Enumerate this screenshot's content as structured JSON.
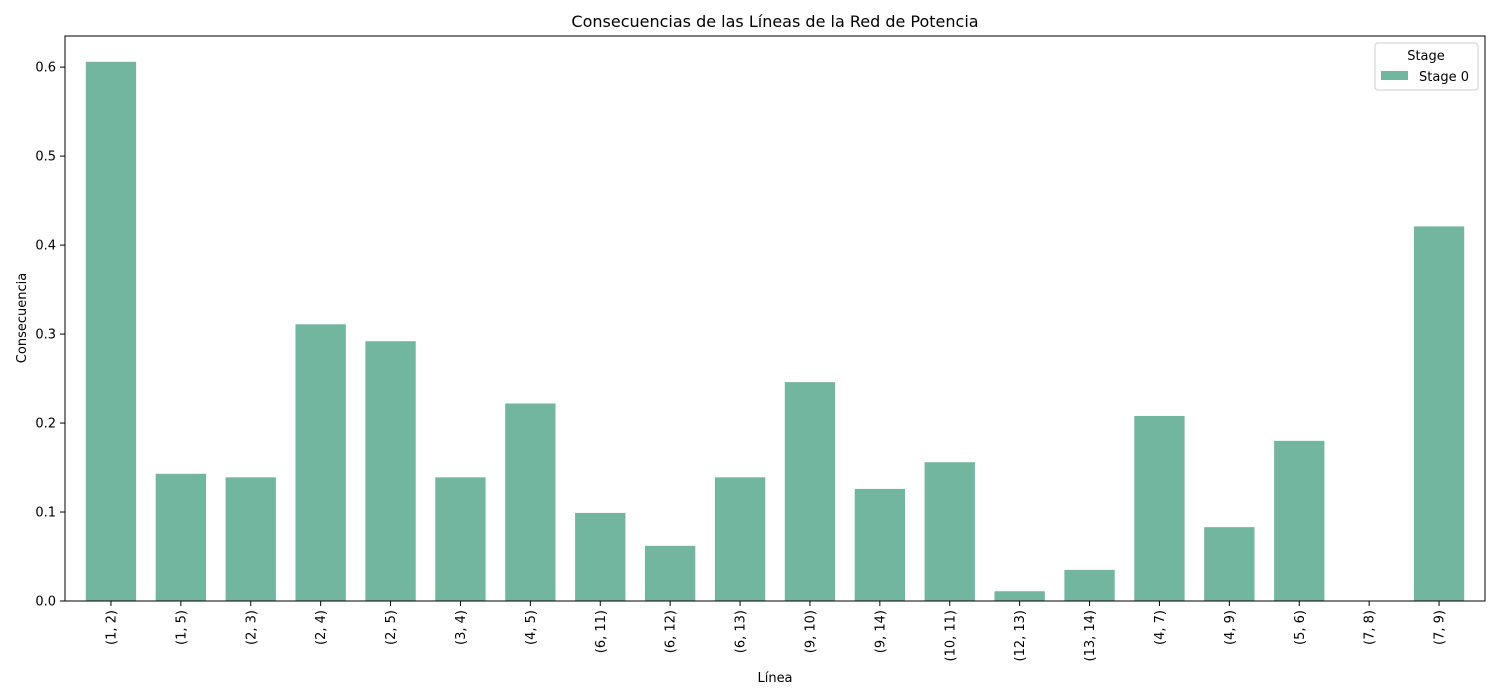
{
  "chart_data": {
    "type": "bar",
    "title": "Consecuencias de las Líneas de la Red de Potencia",
    "xlabel": "Línea",
    "ylabel": "Consecuencia",
    "categories": [
      "(1, 2)",
      "(1, 5)",
      "(2, 3)",
      "(2, 4)",
      "(2, 5)",
      "(3, 4)",
      "(4, 5)",
      "(6, 11)",
      "(6, 12)",
      "(6, 13)",
      "(9, 10)",
      "(9, 14)",
      "(10, 11)",
      "(12, 13)",
      "(13, 14)",
      "(4, 7)",
      "(4, 9)",
      "(5, 6)",
      "(7, 8)",
      "(7, 9)"
    ],
    "series": [
      {
        "name": "Stage 0",
        "color": "#73b6a0",
        "values": [
          0.606,
          0.143,
          0.139,
          0.311,
          0.292,
          0.139,
          0.222,
          0.099,
          0.062,
          0.139,
          0.246,
          0.126,
          0.156,
          0.011,
          0.035,
          0.208,
          0.083,
          0.18,
          0.0,
          0.421
        ]
      }
    ],
    "ylim": [
      0,
      0.635
    ],
    "yticks": [
      0.0,
      0.1,
      0.2,
      0.3,
      0.4,
      0.5,
      0.6
    ],
    "ytick_labels": [
      "0.0",
      "0.1",
      "0.2",
      "0.3",
      "0.4",
      "0.5",
      "0.6"
    ],
    "grid": false,
    "legend": {
      "title": "Stage",
      "placement": "top-right"
    }
  }
}
